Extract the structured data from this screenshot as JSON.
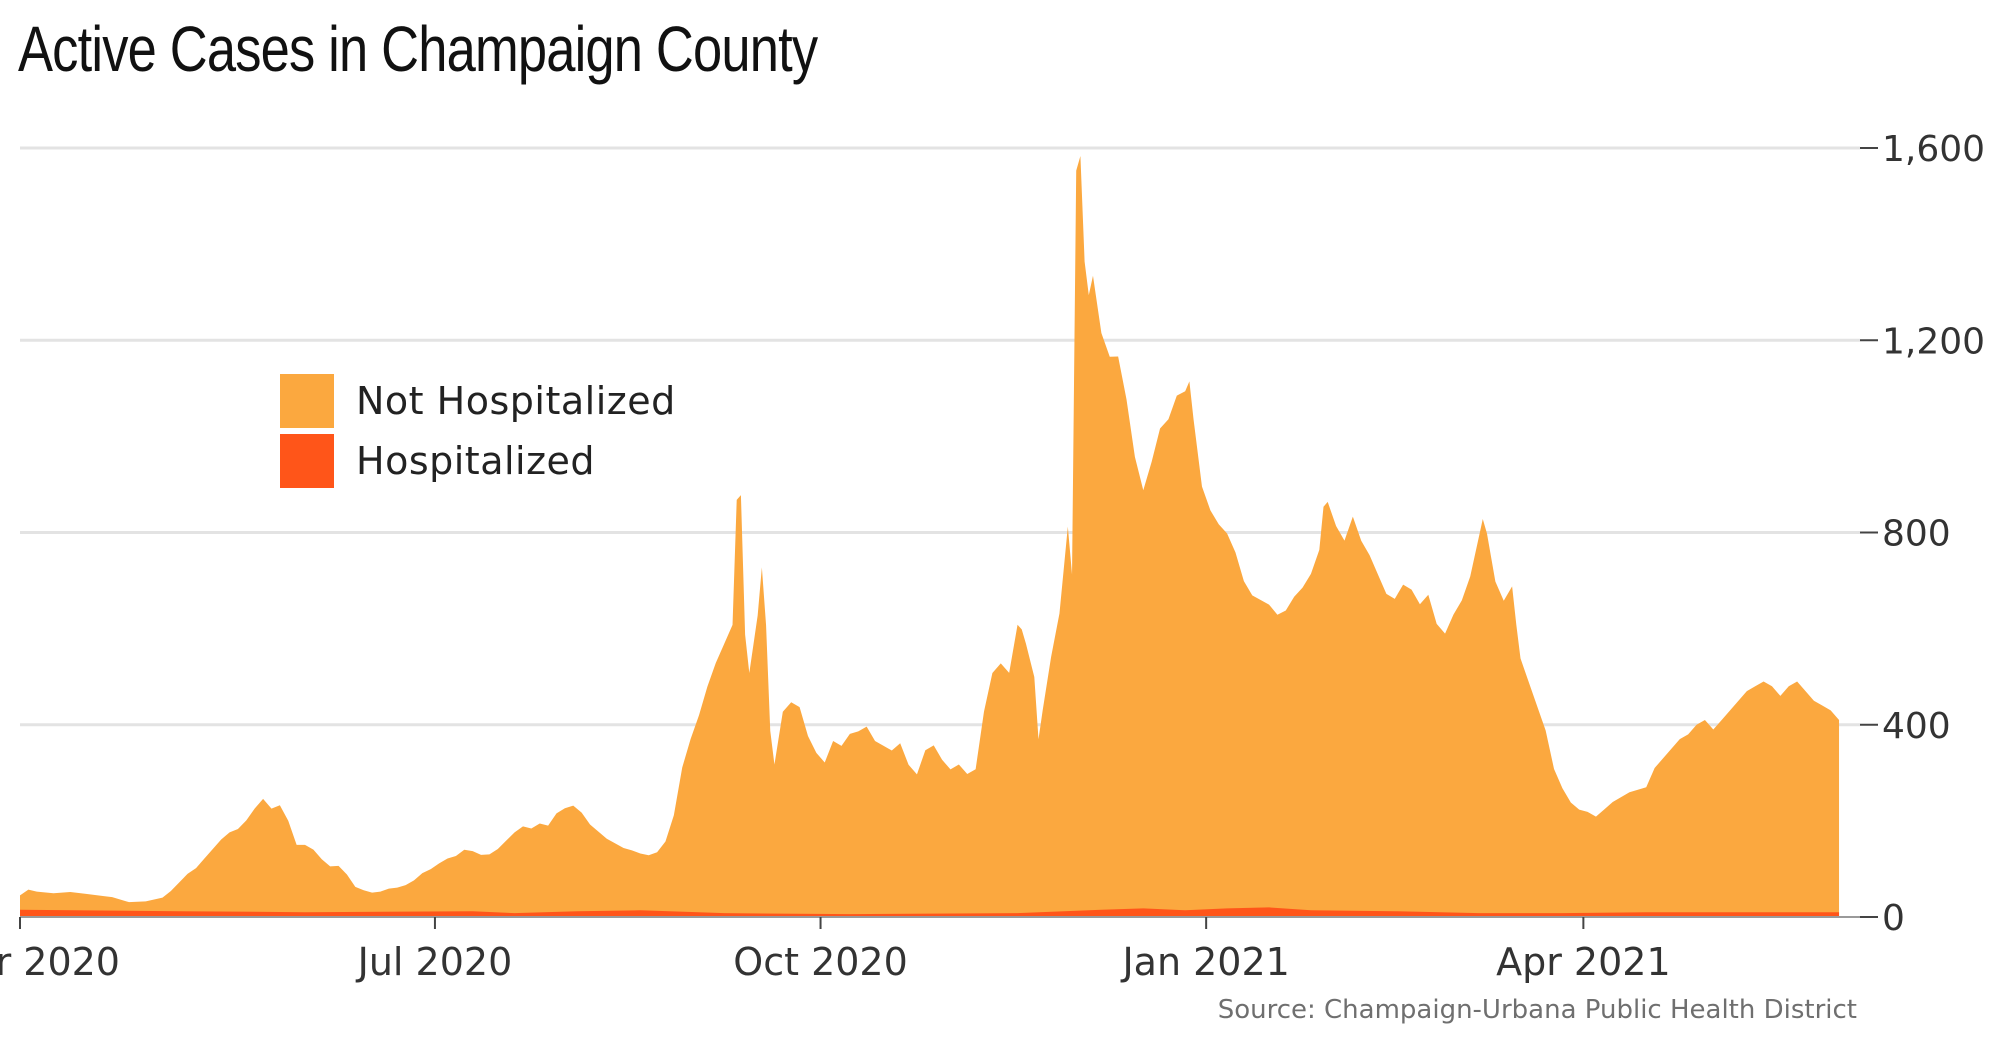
{
  "title": "Active Cases in Champaign County",
  "source": "Source: Champaign-Urbana Public Health District",
  "colors": {
    "not_hospitalized": "#FBA83F",
    "hospitalized": "#FF5519",
    "grid": "#e3e3e3",
    "axis_text": "#333333"
  },
  "chart_data": {
    "type": "area",
    "stacked": true,
    "title": "Active Cases in Champaign County",
    "xlabel": "",
    "ylabel": "",
    "ylim": [
      0,
      1600
    ],
    "yticks": [
      0,
      400,
      800,
      1200,
      1600
    ],
    "ytick_labels": [
      "0",
      "400",
      "800",
      "1,200",
      "1,600"
    ],
    "xlim": [
      -8,
      431
    ],
    "xticks": [
      {
        "day": -8,
        "label": "r 2020"
      },
      {
        "day": 91,
        "label": "Jul 2020"
      },
      {
        "day": 183,
        "label": "Oct 2020"
      },
      {
        "day": 275,
        "label": "Jan 2021"
      },
      {
        "day": 365,
        "label": "Apr 2021"
      }
    ],
    "legend": [
      "Not Hospitalized",
      "Hospitalized"
    ],
    "legend_position": "upper-left",
    "x_unit": "days since 2020-04-01",
    "series": [
      {
        "name": "Hospitalized",
        "points": [
          [
            -8,
            15
          ],
          [
            30,
            12
          ],
          [
            60,
            10
          ],
          [
            100,
            12
          ],
          [
            110,
            8
          ],
          [
            125,
            12
          ],
          [
            140,
            14
          ],
          [
            160,
            8
          ],
          [
            190,
            6
          ],
          [
            230,
            8
          ],
          [
            250,
            15
          ],
          [
            260,
            18
          ],
          [
            270,
            14
          ],
          [
            280,
            18
          ],
          [
            290,
            20
          ],
          [
            300,
            14
          ],
          [
            320,
            12
          ],
          [
            340,
            8
          ],
          [
            360,
            8
          ],
          [
            380,
            10
          ],
          [
            400,
            10
          ],
          [
            430,
            10
          ]
        ]
      },
      {
        "name": "Not Hospitalized",
        "points": [
          [
            -8,
            30
          ],
          [
            -6,
            42
          ],
          [
            -4,
            38
          ],
          [
            0,
            35
          ],
          [
            4,
            38
          ],
          [
            8,
            34
          ],
          [
            12,
            30
          ],
          [
            14,
            28
          ],
          [
            18,
            18
          ],
          [
            22,
            20
          ],
          [
            26,
            28
          ],
          [
            28,
            42
          ],
          [
            30,
            60
          ],
          [
            32,
            78
          ],
          [
            34,
            90
          ],
          [
            36,
            110
          ],
          [
            38,
            130
          ],
          [
            40,
            150
          ],
          [
            42,
            165
          ],
          [
            44,
            172
          ],
          [
            46,
            190
          ],
          [
            48,
            215
          ],
          [
            50,
            235
          ],
          [
            52,
            215
          ],
          [
            54,
            222
          ],
          [
            56,
            190
          ],
          [
            58,
            140
          ],
          [
            60,
            140
          ],
          [
            62,
            130
          ],
          [
            64,
            110
          ],
          [
            66,
            95
          ],
          [
            68,
            96
          ],
          [
            70,
            78
          ],
          [
            72,
            52
          ],
          [
            74,
            45
          ],
          [
            76,
            40
          ],
          [
            78,
            42
          ],
          [
            80,
            48
          ],
          [
            82,
            50
          ],
          [
            84,
            55
          ],
          [
            86,
            65
          ],
          [
            88,
            80
          ],
          [
            90,
            88
          ],
          [
            92,
            100
          ],
          [
            94,
            110
          ],
          [
            96,
            115
          ],
          [
            98,
            128
          ],
          [
            100,
            125
          ],
          [
            102,
            118
          ],
          [
            104,
            120
          ],
          [
            106,
            132
          ],
          [
            108,
            150
          ],
          [
            110,
            168
          ],
          [
            112,
            180
          ],
          [
            114,
            175
          ],
          [
            116,
            185
          ],
          [
            118,
            180
          ],
          [
            120,
            205
          ],
          [
            122,
            215
          ],
          [
            124,
            220
          ],
          [
            126,
            205
          ],
          [
            128,
            180
          ],
          [
            130,
            165
          ],
          [
            132,
            150
          ],
          [
            134,
            140
          ],
          [
            136,
            130
          ],
          [
            138,
            125
          ],
          [
            140,
            118
          ],
          [
            142,
            115
          ],
          [
            144,
            122
          ],
          [
            146,
            145
          ],
          [
            148,
            200
          ],
          [
            150,
            300
          ],
          [
            152,
            360
          ],
          [
            154,
            410
          ],
          [
            156,
            470
          ],
          [
            158,
            520
          ],
          [
            160,
            560
          ],
          [
            162,
            600
          ],
          [
            163,
            860
          ],
          [
            164,
            870
          ],
          [
            165,
            580
          ],
          [
            166,
            500
          ],
          [
            167,
            560
          ],
          [
            168,
            620
          ],
          [
            169,
            720
          ],
          [
            170,
            600
          ],
          [
            171,
            380
          ],
          [
            172,
            310
          ],
          [
            174,
            420
          ],
          [
            176,
            440
          ],
          [
            178,
            430
          ],
          [
            180,
            370
          ],
          [
            182,
            335
          ],
          [
            184,
            315
          ],
          [
            186,
            360
          ],
          [
            188,
            350
          ],
          [
            190,
            375
          ],
          [
            192,
            380
          ],
          [
            194,
            390
          ],
          [
            196,
            360
          ],
          [
            198,
            350
          ],
          [
            200,
            340
          ],
          [
            202,
            355
          ],
          [
            204,
            310
          ],
          [
            206,
            290
          ],
          [
            208,
            340
          ],
          [
            210,
            350
          ],
          [
            212,
            320
          ],
          [
            214,
            300
          ],
          [
            216,
            310
          ],
          [
            218,
            290
          ],
          [
            220,
            300
          ],
          [
            222,
            420
          ],
          [
            224,
            500
          ],
          [
            226,
            520
          ],
          [
            228,
            500
          ],
          [
            230,
            600
          ],
          [
            231,
            590
          ],
          [
            232,
            560
          ],
          [
            234,
            490
          ],
          [
            235,
            360
          ],
          [
            236,
            420
          ],
          [
            238,
            530
          ],
          [
            240,
            620
          ],
          [
            242,
            800
          ],
          [
            243,
            700
          ],
          [
            244,
            1540
          ],
          [
            245,
            1570
          ],
          [
            246,
            1350
          ],
          [
            247,
            1280
          ],
          [
            248,
            1320
          ],
          [
            250,
            1200
          ],
          [
            252,
            1150
          ],
          [
            254,
            1150
          ],
          [
            256,
            1060
          ],
          [
            258,
            940
          ],
          [
            260,
            870
          ],
          [
            262,
            930
          ],
          [
            264,
            1000
          ],
          [
            266,
            1020
          ],
          [
            268,
            1070
          ],
          [
            270,
            1080
          ],
          [
            271,
            1100
          ],
          [
            272,
            1020
          ],
          [
            274,
            880
          ],
          [
            276,
            830
          ],
          [
            278,
            800
          ],
          [
            280,
            780
          ],
          [
            282,
            740
          ],
          [
            284,
            680
          ],
          [
            286,
            650
          ],
          [
            288,
            640
          ],
          [
            290,
            630
          ],
          [
            292,
            610
          ],
          [
            294,
            620
          ],
          [
            296,
            650
          ],
          [
            298,
            670
          ],
          [
            300,
            700
          ],
          [
            302,
            750
          ],
          [
            303,
            840
          ],
          [
            304,
            850
          ],
          [
            306,
            800
          ],
          [
            308,
            770
          ],
          [
            310,
            820
          ],
          [
            312,
            770
          ],
          [
            314,
            740
          ],
          [
            316,
            700
          ],
          [
            318,
            660
          ],
          [
            320,
            650
          ],
          [
            322,
            680
          ],
          [
            324,
            670
          ],
          [
            326,
            640
          ],
          [
            328,
            660
          ],
          [
            330,
            600
          ],
          [
            332,
            580
          ],
          [
            334,
            620
          ],
          [
            336,
            650
          ],
          [
            338,
            700
          ],
          [
            340,
            780
          ],
          [
            341,
            820
          ],
          [
            342,
            790
          ],
          [
            344,
            690
          ],
          [
            346,
            650
          ],
          [
            348,
            680
          ],
          [
            349,
            600
          ],
          [
            350,
            530
          ],
          [
            352,
            480
          ],
          [
            354,
            430
          ],
          [
            356,
            380
          ],
          [
            358,
            300
          ],
          [
            360,
            260
          ],
          [
            362,
            230
          ],
          [
            364,
            215
          ],
          [
            366,
            210
          ],
          [
            368,
            200
          ],
          [
            370,
            215
          ],
          [
            372,
            230
          ],
          [
            374,
            240
          ],
          [
            376,
            250
          ],
          [
            378,
            255
          ],
          [
            380,
            260
          ],
          [
            382,
            300
          ],
          [
            384,
            320
          ],
          [
            386,
            340
          ],
          [
            388,
            360
          ],
          [
            390,
            370
          ],
          [
            392,
            390
          ],
          [
            394,
            400
          ],
          [
            396,
            380
          ],
          [
            398,
            400
          ],
          [
            400,
            420
          ],
          [
            402,
            440
          ],
          [
            404,
            460
          ],
          [
            406,
            470
          ],
          [
            408,
            480
          ],
          [
            410,
            470
          ],
          [
            412,
            450
          ],
          [
            414,
            470
          ],
          [
            416,
            480
          ],
          [
            418,
            460
          ],
          [
            420,
            440
          ],
          [
            422,
            430
          ],
          [
            424,
            420
          ],
          [
            426,
            400
          ]
        ]
      }
    ]
  }
}
